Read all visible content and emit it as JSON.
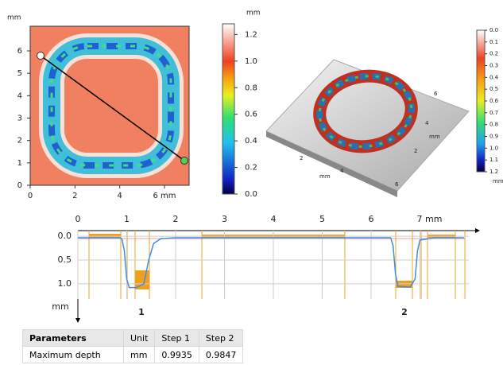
{
  "map2d": {
    "y_unit": "mm",
    "xlim": [
      0,
      7.1
    ],
    "ylim": [
      0,
      7.1
    ],
    "xticks": [
      0,
      2,
      4,
      {
        "value": 6,
        "label": "6 mm"
      }
    ],
    "yticks": [
      0,
      1,
      2,
      3,
      4,
      5,
      6
    ],
    "colorbar": {
      "unit": "mm",
      "lim": [
        0,
        1.28
      ],
      "ticks": [
        {
          "value": 0,
          "label": "0.0"
        },
        {
          "value": 0.2,
          "label": "0.2"
        },
        {
          "value": 0.4,
          "label": "0.4"
        },
        {
          "value": 0.6,
          "label": "0.6"
        },
        {
          "value": 0.8,
          "label": "0.8"
        },
        {
          "value": 1,
          "label": "1.0"
        },
        {
          "value": 1.2,
          "label": "1.2"
        }
      ]
    }
  },
  "map3d": {
    "xticks": [
      2,
      4,
      6
    ],
    "x_unit": "mm",
    "yticks": [
      2,
      4,
      6
    ],
    "y_unit": "mm",
    "colorbar": {
      "unit": "mm",
      "lim": [
        0,
        1.2
      ],
      "ticks": [
        {
          "value": 0,
          "label": "0.0"
        },
        0.1,
        0.2,
        0.3,
        0.4,
        0.5,
        0.6,
        0.7,
        0.8,
        0.9,
        {
          "value": 1,
          "label": "1.0"
        },
        1.1,
        1.2
      ]
    }
  },
  "profile": {
    "y_unit": "mm",
    "xlim": [
      0,
      8
    ],
    "ylim": [
      -0.12,
      1.32
    ],
    "inverted": true,
    "color": "#3c8fe0",
    "xticks": [
      0,
      1,
      2,
      3,
      4,
      5,
      6,
      {
        "value": 7,
        "label": "7 mm"
      }
    ],
    "yticks": [
      {
        "value": 0,
        "label": "0.0"
      },
      {
        "value": 0.5,
        "label": "0.5"
      },
      {
        "value": 1,
        "label": "1.0"
      }
    ],
    "steps": [
      "1",
      "2"
    ],
    "x": [
      0,
      0.5,
      0.85,
      0.9,
      0.95,
      1.0,
      1.05,
      1.2,
      1.35,
      1.45,
      1.55,
      1.7,
      2.0,
      4.0,
      6.4,
      6.45,
      6.5,
      6.55,
      6.8,
      6.9,
      6.95,
      7.0,
      7.3,
      7.9
    ],
    "y": [
      0.03,
      0.03,
      0.03,
      0.05,
      0.3,
      0.9,
      1.08,
      1.08,
      1.0,
      0.5,
      0.15,
      0.05,
      0.03,
      0.03,
      0.03,
      0.2,
      0.8,
      1.05,
      1.07,
      0.9,
      0.3,
      0.08,
      0.03,
      0.03
    ]
  },
  "table": {
    "header": [
      "Parameters",
      "Unit",
      "Step 1",
      "Step 2"
    ],
    "rows": [
      [
        "Maximum depth",
        "mm",
        "0.9935",
        "0.9847"
      ]
    ]
  }
}
